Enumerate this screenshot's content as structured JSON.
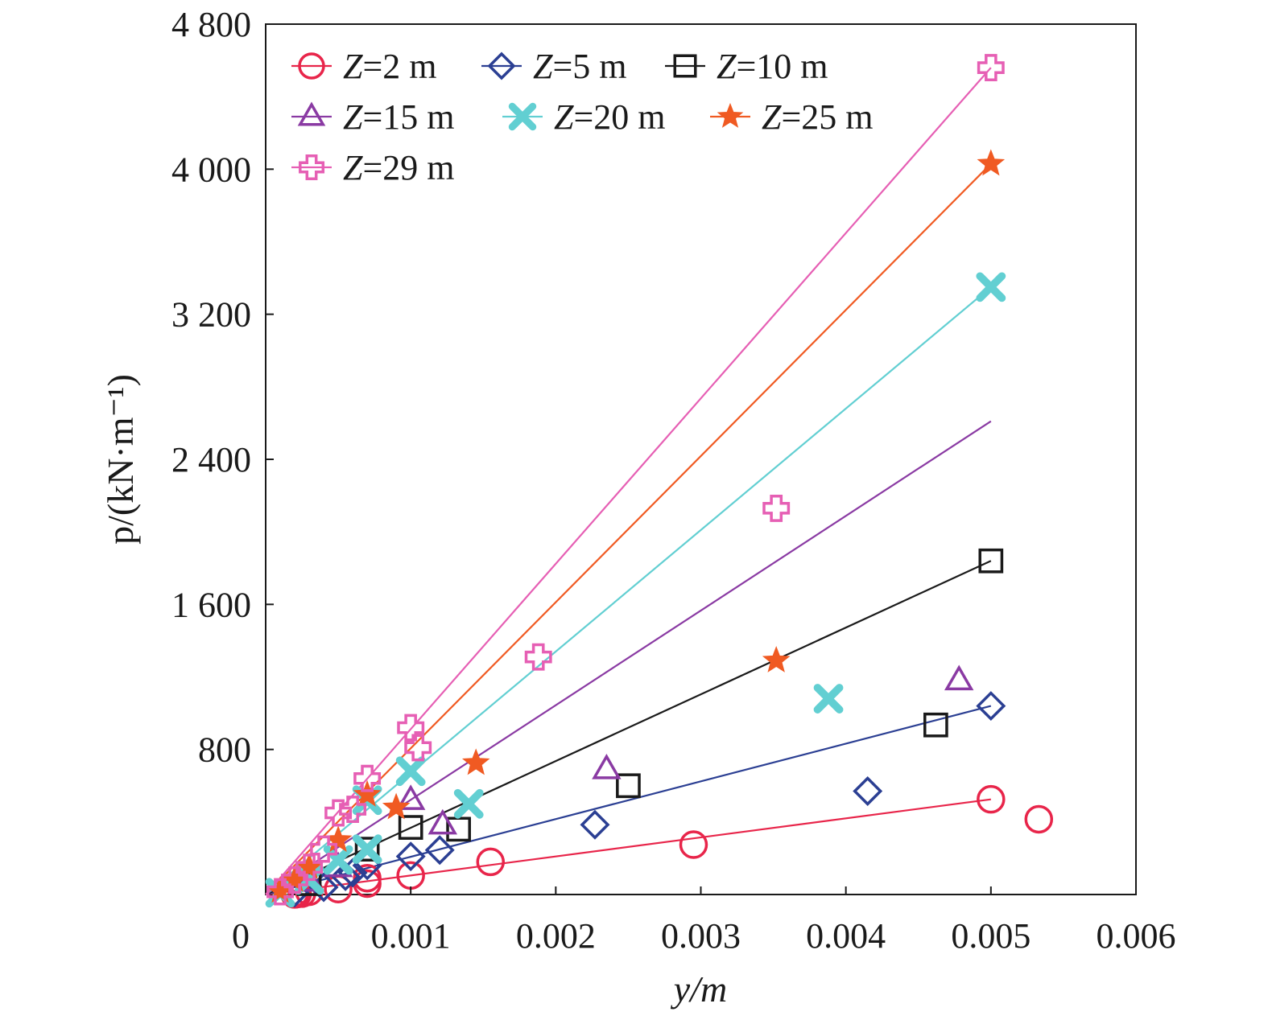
{
  "chart_data": {
    "type": "scatter",
    "title": "",
    "xlabel": "y/m",
    "ylabel": "p/(kN·m⁻¹)",
    "xlim": [
      0,
      0.006
    ],
    "ylim": [
      0,
      4800
    ],
    "x_ticks": [
      0,
      0.001,
      0.002,
      0.003,
      0.004,
      0.005,
      0.006
    ],
    "x_tick_labels": [
      "0",
      "0.001",
      "0.002",
      "0.003",
      "0.004",
      "0.005",
      "0.006"
    ],
    "y_ticks": [
      0,
      800,
      1600,
      2400,
      3200,
      4000,
      4800
    ],
    "y_tick_labels": [
      "",
      "800",
      "1 600",
      "2 400",
      "3 200",
      "4 000",
      "4 800"
    ],
    "grid": false,
    "legend_position": "top-left",
    "series": [
      {
        "name": "Z=2 m",
        "color": "#e8254a",
        "marker": "circle",
        "points": [
          [
            0.0002,
            0.5
          ],
          [
            0.00022,
            3
          ],
          [
            0.00025,
            5
          ],
          [
            0.0002,
            8
          ],
          [
            0.0003,
            15
          ],
          [
            0.0005,
            30
          ],
          [
            0.0007,
            60
          ],
          [
            0.0007,
            90
          ],
          [
            0.001,
            105
          ],
          [
            0.00155,
            180
          ],
          [
            0.00295,
            275
          ],
          [
            0.005,
            525
          ],
          [
            0.00533,
            415
          ]
        ],
        "fit": [
          [
            0,
            0
          ],
          [
            0.005,
            525
          ]
        ]
      },
      {
        "name": "Z=5 m",
        "color": "#2b3f93",
        "marker": "diamond",
        "points": [
          [
            0.0002,
            10
          ],
          [
            0.0004,
            40
          ],
          [
            0.00055,
            100
          ],
          [
            0.0006,
            120
          ],
          [
            0.0007,
            160
          ],
          [
            0.001,
            210
          ],
          [
            0.0012,
            245
          ],
          [
            0.00227,
            385
          ],
          [
            0.00415,
            570
          ],
          [
            0.005,
            1040
          ]
        ],
        "fit": [
          [
            0,
            0
          ],
          [
            0.005,
            1040
          ]
        ]
      },
      {
        "name": "Z=10 m",
        "color": "#1a1a1a",
        "marker": "square",
        "points": [
          [
            0.0003,
            60
          ],
          [
            0.0007,
            250
          ],
          [
            0.001,
            370
          ],
          [
            0.00133,
            360
          ],
          [
            0.0025,
            600
          ],
          [
            0.00462,
            935
          ],
          [
            0.005,
            1840
          ]
        ],
        "fit": [
          [
            0,
            0
          ],
          [
            0.005,
            1840
          ]
        ]
      },
      {
        "name": "Z=15 m",
        "color": "#8a3aa3",
        "marker": "triangle",
        "points": [
          [
            0.0003,
            70
          ],
          [
            0.0005,
            150
          ],
          [
            0.001,
            520
          ],
          [
            0.00122,
            385
          ],
          [
            0.00235,
            690
          ],
          [
            0.00478,
            1180
          ]
        ],
        "fit": [
          [
            0,
            0
          ],
          [
            0.005,
            2610
          ]
        ]
      },
      {
        "name": "Z=20 m",
        "color": "#62cfd2",
        "marker": "x",
        "points": [
          [
            0.0001,
            10
          ],
          [
            0.0003,
            80
          ],
          [
            0.0005,
            190
          ],
          [
            0.0007,
            250
          ],
          [
            0.0007,
            520
          ],
          [
            0.001,
            680
          ],
          [
            0.0014,
            500
          ],
          [
            0.00388,
            1080
          ],
          [
            0.005,
            3350
          ]
        ],
        "fit": [
          [
            0,
            0
          ],
          [
            0.005,
            3350
          ]
        ]
      },
      {
        "name": "Z=25 m",
        "color": "#f05a22",
        "marker": "star",
        "points": [
          [
            0.0001,
            20
          ],
          [
            0.0002,
            80
          ],
          [
            0.0003,
            150
          ],
          [
            0.0005,
            300
          ],
          [
            0.0007,
            550
          ],
          [
            0.0009,
            480
          ],
          [
            0.00145,
            725
          ],
          [
            0.00352,
            1290
          ],
          [
            0.005,
            4030
          ]
        ],
        "fit": [
          [
            0,
            0
          ],
          [
            0.005,
            4030
          ]
        ]
      },
      {
        "name": "Z=29 m",
        "color": "#e65fb4",
        "marker": "plus",
        "points": [
          [
            0.0001,
            15
          ],
          [
            0.0002,
            80
          ],
          [
            0.0003,
            150
          ],
          [
            0.0004,
            250
          ],
          [
            0.0005,
            450
          ],
          [
            0.0006,
            470
          ],
          [
            0.0007,
            640
          ],
          [
            0.001,
            920
          ],
          [
            0.00105,
            810
          ],
          [
            0.00188,
            1310
          ],
          [
            0.00352,
            2130
          ],
          [
            0.005,
            4560
          ]
        ],
        "fit": [
          [
            0,
            0
          ],
          [
            0.005,
            4560
          ]
        ]
      }
    ]
  }
}
